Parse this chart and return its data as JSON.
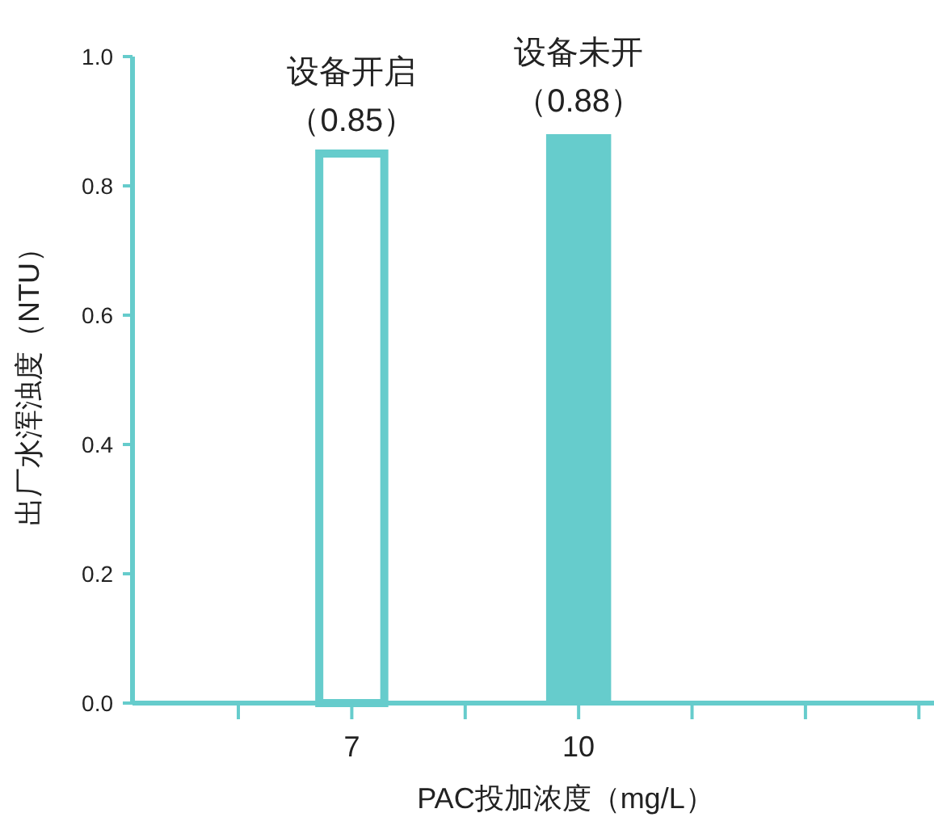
{
  "chart_data": {
    "type": "bar",
    "xlabel": "PAC投加浓度（mg/L）",
    "ylabel": "出厂水浑浊度（NTU）",
    "x": [
      7,
      10
    ],
    "series": [
      {
        "name": "设备开启",
        "color": "#66cccc",
        "values": [
          0.85,
          null
        ],
        "value_labels": [
          "（0.85）",
          null
        ]
      },
      {
        "name": "设备未开",
        "color": "#66cccc",
        "values": [
          null,
          0.88
        ],
        "value_labels": [
          null,
          "（0.88）"
        ]
      }
    ],
    "xlim": [
      4.1,
      14.7
    ],
    "xticks": [
      {
        "value": 5.5,
        "label": null
      },
      7,
      {
        "value": 8.5,
        "label": null
      },
      10,
      {
        "value": 11.5,
        "label": null
      },
      {
        "value": 13,
        "label": null
      },
      {
        "value": 14.5,
        "label": null
      }
    ],
    "ylim": [
      0,
      1
    ],
    "yticks": [
      {
        "value": 0,
        "label": "0.0"
      },
      0.2,
      0.4,
      0.6,
      0.8,
      {
        "value": 1,
        "label": "1.0"
      }
    ],
    "grid": false,
    "legend": false
  }
}
